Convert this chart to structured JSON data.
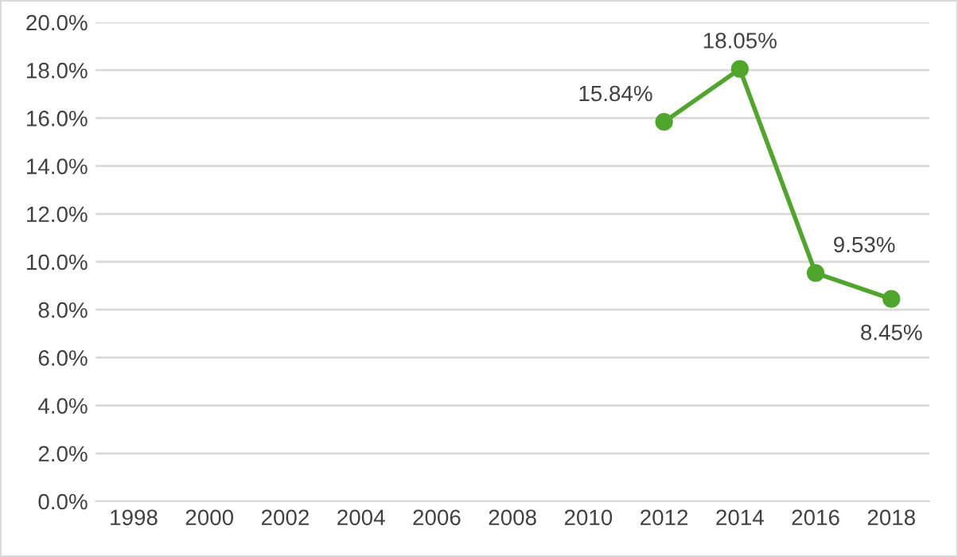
{
  "chart_data": {
    "type": "line",
    "categories": [
      "1998",
      "2000",
      "2002",
      "2004",
      "2006",
      "2008",
      "2010",
      "2012",
      "2014",
      "2016",
      "2018"
    ],
    "series": [
      {
        "color": "#4ea72a",
        "values": [
          null,
          null,
          null,
          null,
          null,
          null,
          null,
          15.84,
          18.05,
          9.53,
          8.45
        ],
        "value_labels": [
          null,
          null,
          null,
          null,
          null,
          null,
          null,
          "15.84%",
          "18.05%",
          "9.53%",
          "8.45%"
        ]
      }
    ],
    "ylim": [
      0,
      20
    ],
    "yticks": [
      {
        "value": 0,
        "label": "0.0%"
      },
      {
        "value": 2,
        "label": "2.0%"
      },
      {
        "value": 4,
        "label": "4.0%"
      },
      {
        "value": 6,
        "label": "6.0%"
      },
      {
        "value": 8,
        "label": "8.0%"
      },
      {
        "value": 10,
        "label": "10.0%"
      },
      {
        "value": 12,
        "label": "12.0%"
      },
      {
        "value": 14,
        "label": "14.0%"
      },
      {
        "value": 16,
        "label": "16.0%"
      },
      {
        "value": 18,
        "label": "18.0%"
      },
      {
        "value": 20,
        "label": "20.0%"
      }
    ],
    "grid": "y",
    "marker": "circle",
    "line_style": "solid",
    "legend": false
  }
}
